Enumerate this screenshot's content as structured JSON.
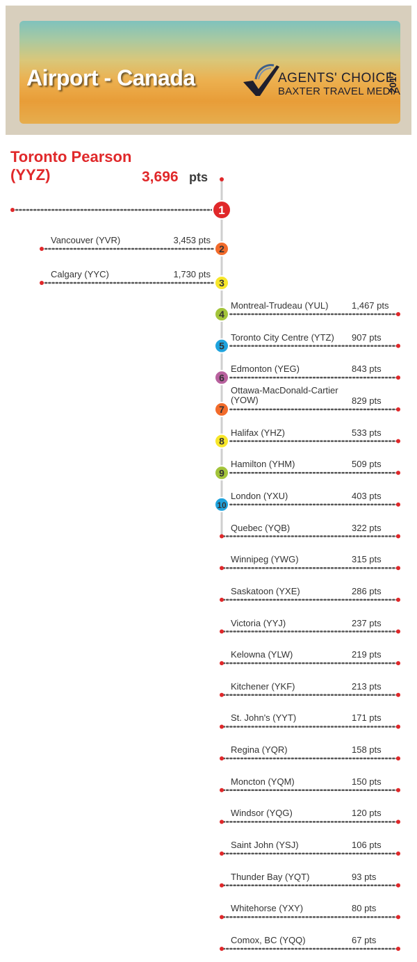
{
  "banner": {
    "title": "Airport - Canada",
    "logo_line1": "AGENTS' CHOICE",
    "logo_line2": "BAXTER TRAVEL MEDIA",
    "logo_year": "2017"
  },
  "top": {
    "name": "Toronto Pearson (YYZ)",
    "points": "3,696",
    "unit": "pts",
    "rank": "1",
    "color": "#e0282a"
  },
  "rank_colors": {
    "red": "#e0282a",
    "orange": "#f26b2b",
    "yellow": "#f7e62a",
    "green": "#a3c43a",
    "blue": "#1fa3dd",
    "purple": "#b8619e"
  },
  "chart_data": {
    "type": "table",
    "title": "Airport - Canada",
    "unit": "pts",
    "rows": [
      {
        "rank": "1",
        "name": "Toronto Pearson (YYZ)",
        "value": 3696,
        "label": "3,696 pts",
        "color": "red"
      },
      {
        "rank": "2",
        "name": "Vancouver (YVR)",
        "value": 3453,
        "label": "3,453 pts",
        "color": "orange"
      },
      {
        "rank": "3",
        "name": "Calgary (YYC)",
        "value": 1730,
        "label": "1,730 pts",
        "color": "yellow"
      },
      {
        "rank": "4",
        "name": "Montreal-Trudeau (YUL)",
        "value": 1467,
        "label": "1,467 pts",
        "color": "green"
      },
      {
        "rank": "5",
        "name": "Toronto City Centre (YTZ)",
        "value": 907,
        "label": "907 pts",
        "color": "blue"
      },
      {
        "rank": "6",
        "name": "Edmonton (YEG)",
        "value": 843,
        "label": "843 pts",
        "color": "purple"
      },
      {
        "rank": "7",
        "name": "Ottawa-MacDonald-Cartier (YOW)",
        "value": 829,
        "label": "829 pts",
        "color": "orange"
      },
      {
        "rank": "8",
        "name": "Halifax (YHZ)",
        "value": 533,
        "label": "533 pts",
        "color": "yellow"
      },
      {
        "rank": "9",
        "name": "Hamilton (YHM)",
        "value": 509,
        "label": "509 pts",
        "color": "green"
      },
      {
        "rank": "10",
        "name": "London (YXU)",
        "value": 403,
        "label": "403 pts",
        "color": "blue"
      },
      {
        "rank": "",
        "name": "Quebec (YQB)",
        "value": 322,
        "label": "322 pts",
        "color": ""
      },
      {
        "rank": "",
        "name": "Winnipeg (YWG)",
        "value": 315,
        "label": "315 pts",
        "color": ""
      },
      {
        "rank": "",
        "name": "Saskatoon (YXE)",
        "value": 286,
        "label": "286 pts",
        "color": ""
      },
      {
        "rank": "",
        "name": "Victoria (YYJ)",
        "value": 237,
        "label": "237 pts",
        "color": ""
      },
      {
        "rank": "",
        "name": "Kelowna (YLW)",
        "value": 219,
        "label": "219 pts",
        "color": ""
      },
      {
        "rank": "",
        "name": "Kitchener (YKF)",
        "value": 213,
        "label": "213 pts",
        "color": ""
      },
      {
        "rank": "",
        "name": "St. John's (YYT)",
        "value": 171,
        "label": "171 pts",
        "color": ""
      },
      {
        "rank": "",
        "name": "Regina (YQR)",
        "value": 158,
        "label": "158 pts",
        "color": ""
      },
      {
        "rank": "",
        "name": "Moncton (YQM)",
        "value": 150,
        "label": "150 pts",
        "color": ""
      },
      {
        "rank": "",
        "name": "Windsor (YQG)",
        "value": 120,
        "label": "120 pts",
        "color": ""
      },
      {
        "rank": "",
        "name": "Saint John (YSJ)",
        "value": 106,
        "label": "106 pts",
        "color": ""
      },
      {
        "rank": "",
        "name": "Thunder Bay (YQT)",
        "value": 93,
        "label": "93 pts",
        "color": ""
      },
      {
        "rank": "",
        "name": "Whitehorse (YXY)",
        "value": 80,
        "label": "80 pts",
        "color": ""
      },
      {
        "rank": "",
        "name": "Comox, BC (YQQ)",
        "value": 67,
        "label": "67 pts",
        "color": ""
      }
    ]
  }
}
